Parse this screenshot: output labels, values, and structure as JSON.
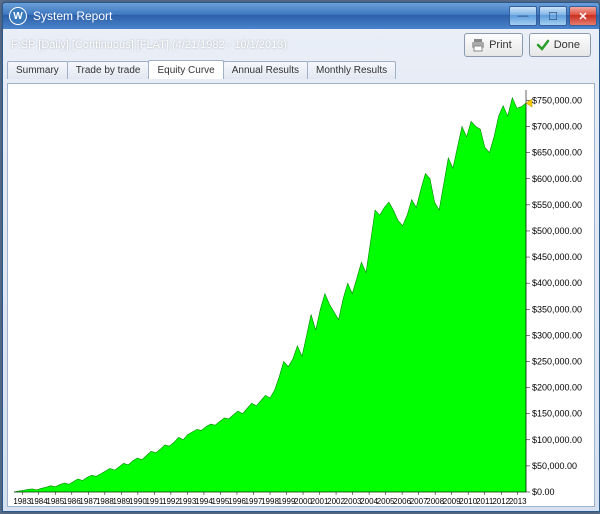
{
  "window": {
    "title": "System Report",
    "icon_letter": "W"
  },
  "header": {
    "subtitle": "F:SP [Daily]  [Continuous] [FLAT]  (4/21/1982 - 10/1/2013)",
    "print_label": "Print",
    "done_label": "Done"
  },
  "tabs": [
    {
      "label": "Summary",
      "active": false
    },
    {
      "label": "Trade by trade",
      "active": false
    },
    {
      "label": "Equity Curve",
      "active": true
    },
    {
      "label": "Annual Results",
      "active": false
    },
    {
      "label": "Monthly Results",
      "active": false
    }
  ],
  "chart": {
    "type": "area",
    "background_color": "#ffffff",
    "fill_color": "#00ff00",
    "stroke_color": "#008800",
    "marker_color": "#ffcc00",
    "ylim": [
      0,
      770000
    ],
    "ytick_step": 50000,
    "ytick_format": "dollar",
    "y_labels": [
      "$0.00",
      "$50,000.00",
      "$100,000.00",
      "$150,000.00",
      "$200,000.00",
      "$250,000.00",
      "$300,000.00",
      "$350,000.00",
      "$400,000.00",
      "$450,000.00",
      "$500,000.00",
      "$550,000.00",
      "$600,000.00",
      "$650,000.00",
      "$700,000.00",
      "$750,000.00"
    ],
    "x_labels": [
      "1983",
      "1984",
      "1985",
      "1986",
      "1987",
      "1988",
      "1989",
      "1990",
      "1991",
      "1992",
      "1993",
      "1994",
      "1995",
      "1996",
      "1997",
      "1998",
      "1999",
      "2000",
      "2001",
      "2002",
      "2003",
      "2004",
      "2005",
      "2006",
      "2007",
      "2008",
      "2009",
      "2010",
      "2011",
      "2012",
      "2013"
    ],
    "x_label_fontsize": 8,
    "y_label_fontsize": 9,
    "series": [
      0,
      2000,
      3000,
      5000,
      6000,
      4000,
      7000,
      9000,
      12000,
      10000,
      14000,
      17000,
      15000,
      20000,
      25000,
      22000,
      28000,
      32000,
      30000,
      35000,
      40000,
      45000,
      42000,
      48000,
      55000,
      52000,
      60000,
      65000,
      62000,
      70000,
      78000,
      75000,
      82000,
      90000,
      88000,
      95000,
      105000,
      100000,
      110000,
      115000,
      120000,
      118000,
      125000,
      130000,
      128000,
      135000,
      142000,
      140000,
      148000,
      155000,
      150000,
      160000,
      170000,
      165000,
      175000,
      185000,
      180000,
      195000,
      220000,
      250000,
      240000,
      255000,
      280000,
      260000,
      300000,
      340000,
      310000,
      350000,
      380000,
      360000,
      345000,
      330000,
      370000,
      400000,
      380000,
      410000,
      440000,
      420000,
      480000,
      540000,
      530000,
      545000,
      555000,
      540000,
      520000,
      510000,
      530000,
      560000,
      545000,
      580000,
      610000,
      600000,
      555000,
      540000,
      590000,
      640000,
      620000,
      660000,
      700000,
      680000,
      710000,
      700000,
      695000,
      660000,
      650000,
      680000,
      720000,
      740000,
      720000,
      755000,
      735000,
      738000,
      745000
    ],
    "current_marker_value": 745000
  }
}
